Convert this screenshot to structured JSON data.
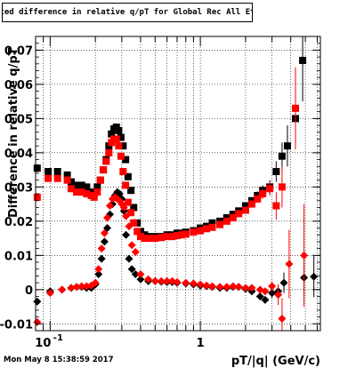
{
  "title": "Fitted difference in relative q/pT for Global Rec All EtapT",
  "footer": "Mon May  8 15:38:59 2017",
  "chart_data": {
    "type": "scatter",
    "xlabel": "pT/|q| (GeV/c)",
    "ylabel": "Difference in relative q/pT",
    "xscale": "log",
    "xlim": [
      0.08,
      6.3
    ],
    "ylim": [
      -0.012,
      0.074
    ],
    "xticks": [
      {
        "value": 0.1,
        "label": "10^-1"
      },
      {
        "value": 1,
        "label": "1"
      }
    ],
    "yticks": [
      -0.01,
      0,
      0.01,
      0.02,
      0.03,
      0.04,
      0.05,
      0.06,
      0.07
    ],
    "ytick_labels": [
      "-0.01",
      "0",
      "0.01",
      "0.02",
      "0.03",
      "0.04",
      "0.05",
      "0.06",
      "0.07"
    ],
    "grid": true,
    "series": [
      {
        "color": "#000000",
        "marker": "square",
        "points": [
          [
            0.082,
            0.0355
          ],
          [
            0.097,
            0.0345
          ],
          [
            0.112,
            0.0345
          ],
          [
            0.13,
            0.0335
          ],
          [
            0.138,
            0.0315
          ],
          [
            0.15,
            0.0305
          ],
          [
            0.162,
            0.0305
          ],
          [
            0.175,
            0.03
          ],
          [
            0.188,
            0.0285
          ],
          [
            0.196,
            0.0275
          ],
          [
            0.206,
            0.03
          ],
          [
            0.216,
            0.032
          ],
          [
            0.226,
            0.035
          ],
          [
            0.236,
            0.038
          ],
          [
            0.246,
            0.042
          ],
          [
            0.256,
            0.0455
          ],
          [
            0.266,
            0.047
          ],
          [
            0.276,
            0.0475
          ],
          [
            0.286,
            0.0465
          ],
          [
            0.296,
            0.0445
          ],
          [
            0.306,
            0.042
          ],
          [
            0.318,
            0.038
          ],
          [
            0.33,
            0.033
          ],
          [
            0.345,
            0.029
          ],
          [
            0.36,
            0.024
          ],
          [
            0.38,
            0.0195
          ],
          [
            0.4,
            0.017
          ],
          [
            0.425,
            0.016
          ],
          [
            0.45,
            0.0155
          ],
          [
            0.5,
            0.0155
          ],
          [
            0.55,
            0.0155
          ],
          [
            0.6,
            0.016
          ],
          [
            0.65,
            0.016
          ],
          [
            0.7,
            0.0165
          ],
          [
            0.75,
            0.0165
          ],
          [
            0.8,
            0.0168
          ],
          [
            0.9,
            0.0172
          ],
          [
            1.0,
            0.018
          ],
          [
            1.1,
            0.0185
          ],
          [
            1.2,
            0.0195
          ],
          [
            1.35,
            0.02
          ],
          [
            1.5,
            0.021
          ],
          [
            1.65,
            0.022
          ],
          [
            1.8,
            0.023
          ],
          [
            2.0,
            0.0245
          ],
          [
            2.2,
            0.026
          ],
          [
            2.4,
            0.0275
          ],
          [
            2.6,
            0.029
          ],
          [
            2.9,
            0.03
          ],
          [
            3.2,
            0.0345
          ],
          [
            3.5,
            0.039
          ],
          [
            3.8,
            0.042
          ],
          [
            4.3,
            0.05
          ],
          [
            4.8,
            0.067
          ]
        ],
        "errors": [
          0.0012,
          0.001,
          0.001,
          0.001,
          0.001,
          0.001,
          0.001,
          0.001,
          0.001,
          0.001,
          0.001,
          0.001,
          0.001,
          0.001,
          0.001,
          0.001,
          0.001,
          0.001,
          0.001,
          0.001,
          0.001,
          0.001,
          0.001,
          0.001,
          0.001,
          0.0008,
          0.0006,
          0.0006,
          0.0006,
          0.0006,
          0.0006,
          0.0006,
          0.0006,
          0.0006,
          0.0006,
          0.0006,
          0.0006,
          0.0006,
          0.0006,
          0.0006,
          0.0006,
          0.0006,
          0.0007,
          0.0008,
          0.0009,
          0.001,
          0.0012,
          0.0015,
          0.002,
          0.003,
          0.004,
          0.006,
          0.009,
          0.012
        ]
      },
      {
        "color": "#ff0000",
        "marker": "square",
        "points": [
          [
            0.082,
            0.027
          ],
          [
            0.097,
            0.0325
          ],
          [
            0.112,
            0.0325
          ],
          [
            0.13,
            0.032
          ],
          [
            0.138,
            0.0295
          ],
          [
            0.15,
            0.0285
          ],
          [
            0.162,
            0.0285
          ],
          [
            0.175,
            0.028
          ],
          [
            0.188,
            0.0275
          ],
          [
            0.196,
            0.027
          ],
          [
            0.206,
            0.0285
          ],
          [
            0.216,
            0.032
          ],
          [
            0.226,
            0.035
          ],
          [
            0.236,
            0.0375
          ],
          [
            0.246,
            0.04
          ],
          [
            0.256,
            0.043
          ],
          [
            0.266,
            0.044
          ],
          [
            0.276,
            0.044
          ],
          [
            0.286,
            0.042
          ],
          [
            0.296,
            0.039
          ],
          [
            0.306,
            0.0345
          ],
          [
            0.318,
            0.0305
          ],
          [
            0.33,
            0.0255
          ],
          [
            0.345,
            0.0225
          ],
          [
            0.36,
            0.0195
          ],
          [
            0.38,
            0.017
          ],
          [
            0.4,
            0.0155
          ],
          [
            0.425,
            0.015
          ],
          [
            0.45,
            0.015
          ],
          [
            0.5,
            0.015
          ],
          [
            0.55,
            0.0152
          ],
          [
            0.6,
            0.0155
          ],
          [
            0.65,
            0.0155
          ],
          [
            0.7,
            0.0158
          ],
          [
            0.75,
            0.016
          ],
          [
            0.8,
            0.0162
          ],
          [
            0.9,
            0.0168
          ],
          [
            1.0,
            0.0172
          ],
          [
            1.1,
            0.0178
          ],
          [
            1.2,
            0.0182
          ],
          [
            1.35,
            0.019
          ],
          [
            1.5,
            0.02
          ],
          [
            1.65,
            0.021
          ],
          [
            1.8,
            0.0222
          ],
          [
            2.0,
            0.0232
          ],
          [
            2.2,
            0.025
          ],
          [
            2.4,
            0.0265
          ],
          [
            2.6,
            0.028
          ],
          [
            2.9,
            0.0295
          ],
          [
            3.2,
            0.0245
          ],
          [
            3.5,
            0.03
          ],
          [
            4.3,
            0.053
          ]
        ],
        "errors": [
          0.0012,
          0.001,
          0.001,
          0.001,
          0.001,
          0.001,
          0.001,
          0.001,
          0.001,
          0.001,
          0.001,
          0.001,
          0.001,
          0.001,
          0.001,
          0.001,
          0.001,
          0.001,
          0.001,
          0.001,
          0.001,
          0.001,
          0.001,
          0.001,
          0.001,
          0.0008,
          0.0006,
          0.0006,
          0.0006,
          0.0006,
          0.0006,
          0.0006,
          0.0006,
          0.0006,
          0.0006,
          0.0006,
          0.0006,
          0.0006,
          0.0006,
          0.0006,
          0.0006,
          0.0006,
          0.0007,
          0.0008,
          0.0009,
          0.001,
          0.0012,
          0.0015,
          0.002,
          0.004,
          0.006,
          0.012
        ]
      },
      {
        "color": "#000000",
        "marker": "diamond",
        "points": [
          [
            0.082,
            -0.0035
          ],
          [
            0.1,
            -0.0005
          ],
          [
            0.12,
            0.0
          ],
          [
            0.138,
            0.0005
          ],
          [
            0.15,
            0.0008
          ],
          [
            0.162,
            0.0008
          ],
          [
            0.175,
            0.0005
          ],
          [
            0.188,
            0.0005
          ],
          [
            0.2,
            0.0015
          ],
          [
            0.21,
            0.0045
          ],
          [
            0.22,
            0.009
          ],
          [
            0.23,
            0.014
          ],
          [
            0.24,
            0.018
          ],
          [
            0.25,
            0.022
          ],
          [
            0.26,
            0.025
          ],
          [
            0.27,
            0.0275
          ],
          [
            0.28,
            0.0285
          ],
          [
            0.29,
            0.028
          ],
          [
            0.3,
            0.0265
          ],
          [
            0.31,
            0.023
          ],
          [
            0.32,
            0.016
          ],
          [
            0.335,
            0.009
          ],
          [
            0.35,
            0.006
          ],
          [
            0.37,
            0.0045
          ],
          [
            0.4,
            0.003
          ],
          [
            0.45,
            0.0025
          ],
          [
            0.5,
            0.0025
          ],
          [
            0.55,
            0.0023
          ],
          [
            0.6,
            0.0022
          ],
          [
            0.65,
            0.0022
          ],
          [
            0.7,
            0.002
          ],
          [
            0.8,
            0.0018
          ],
          [
            0.9,
            0.0015
          ],
          [
            1.0,
            0.0012
          ],
          [
            1.1,
            0.001
          ],
          [
            1.2,
            0.0008
          ],
          [
            1.35,
            0.0005
          ],
          [
            1.5,
            0.0005
          ],
          [
            1.65,
            0.0008
          ],
          [
            1.8,
            0.0008
          ],
          [
            2.0,
            0.0002
          ],
          [
            2.2,
            -0.0005
          ],
          [
            2.5,
            -0.002
          ],
          [
            2.7,
            -0.003
          ],
          [
            3.0,
            -0.001
          ],
          [
            3.3,
            -0.0005
          ],
          [
            3.6,
            0.002
          ],
          [
            4.9,
            0.0035
          ],
          [
            5.7,
            0.0038
          ]
        ],
        "errors": [
          0.001,
          0.0008,
          0.0008,
          0.0008,
          0.0008,
          0.0008,
          0.0008,
          0.0008,
          0.0008,
          0.0008,
          0.0008,
          0.0008,
          0.0008,
          0.0008,
          0.0008,
          0.0008,
          0.0008,
          0.0008,
          0.0008,
          0.0008,
          0.0008,
          0.0008,
          0.0008,
          0.0006,
          0.0005,
          0.0005,
          0.0005,
          0.0005,
          0.0005,
          0.0005,
          0.0005,
          0.0005,
          0.0005,
          0.0005,
          0.0005,
          0.0005,
          0.0005,
          0.0005,
          0.0005,
          0.0006,
          0.0007,
          0.0008,
          0.0009,
          0.001,
          0.0015,
          0.002,
          0.003,
          0.006,
          0.006
        ]
      },
      {
        "color": "#ff0000",
        "marker": "diamond",
        "points": [
          [
            0.082,
            -0.0095
          ],
          [
            0.1,
            -0.001
          ],
          [
            0.12,
            0.0
          ],
          [
            0.138,
            0.0005
          ],
          [
            0.15,
            0.0008
          ],
          [
            0.162,
            0.001
          ],
          [
            0.175,
            0.001
          ],
          [
            0.188,
            0.0012
          ],
          [
            0.2,
            0.002
          ],
          [
            0.21,
            0.006
          ],
          [
            0.22,
            0.012
          ],
          [
            0.23,
            0.0165
          ],
          [
            0.24,
            0.021
          ],
          [
            0.25,
            0.0245
          ],
          [
            0.26,
            0.0265
          ],
          [
            0.27,
            0.027
          ],
          [
            0.28,
            0.0265
          ],
          [
            0.29,
            0.026
          ],
          [
            0.3,
            0.025
          ],
          [
            0.31,
            0.024
          ],
          [
            0.32,
            0.0215
          ],
          [
            0.335,
            0.0185
          ],
          [
            0.35,
            0.013
          ],
          [
            0.37,
            0.011
          ],
          [
            0.4,
            0.0045
          ],
          [
            0.45,
            0.003
          ],
          [
            0.5,
            0.0025
          ],
          [
            0.55,
            0.0025
          ],
          [
            0.6,
            0.0025
          ],
          [
            0.65,
            0.0025
          ],
          [
            0.7,
            0.0022
          ],
          [
            0.8,
            0.002
          ],
          [
            0.9,
            0.0018
          ],
          [
            1.0,
            0.0015
          ],
          [
            1.1,
            0.0012
          ],
          [
            1.2,
            0.001
          ],
          [
            1.35,
            0.0008
          ],
          [
            1.5,
            0.0008
          ],
          [
            1.65,
            0.001
          ],
          [
            1.8,
            0.0008
          ],
          [
            2.0,
            0.0005
          ],
          [
            2.2,
            0.0005
          ],
          [
            2.5,
            0.0
          ],
          [
            2.7,
            -0.0005
          ],
          [
            3.0,
            0.001
          ],
          [
            3.3,
            -0.0015
          ],
          [
            3.5,
            -0.0085
          ],
          [
            3.9,
            0.0075
          ],
          [
            4.9,
            0.01
          ]
        ],
        "errors": [
          0.001,
          0.0008,
          0.0008,
          0.0008,
          0.0008,
          0.0008,
          0.0008,
          0.0008,
          0.0008,
          0.0008,
          0.0008,
          0.0008,
          0.0008,
          0.0008,
          0.0008,
          0.0008,
          0.0008,
          0.0008,
          0.0008,
          0.0008,
          0.0008,
          0.0008,
          0.0008,
          0.0006,
          0.0005,
          0.0005,
          0.0005,
          0.0005,
          0.0005,
          0.0005,
          0.0005,
          0.0005,
          0.0005,
          0.0005,
          0.0005,
          0.0005,
          0.0005,
          0.0005,
          0.0005,
          0.0006,
          0.0007,
          0.0008,
          0.0009,
          0.001,
          0.0015,
          0.003,
          0.006,
          0.01,
          0.015
        ]
      }
    ]
  }
}
